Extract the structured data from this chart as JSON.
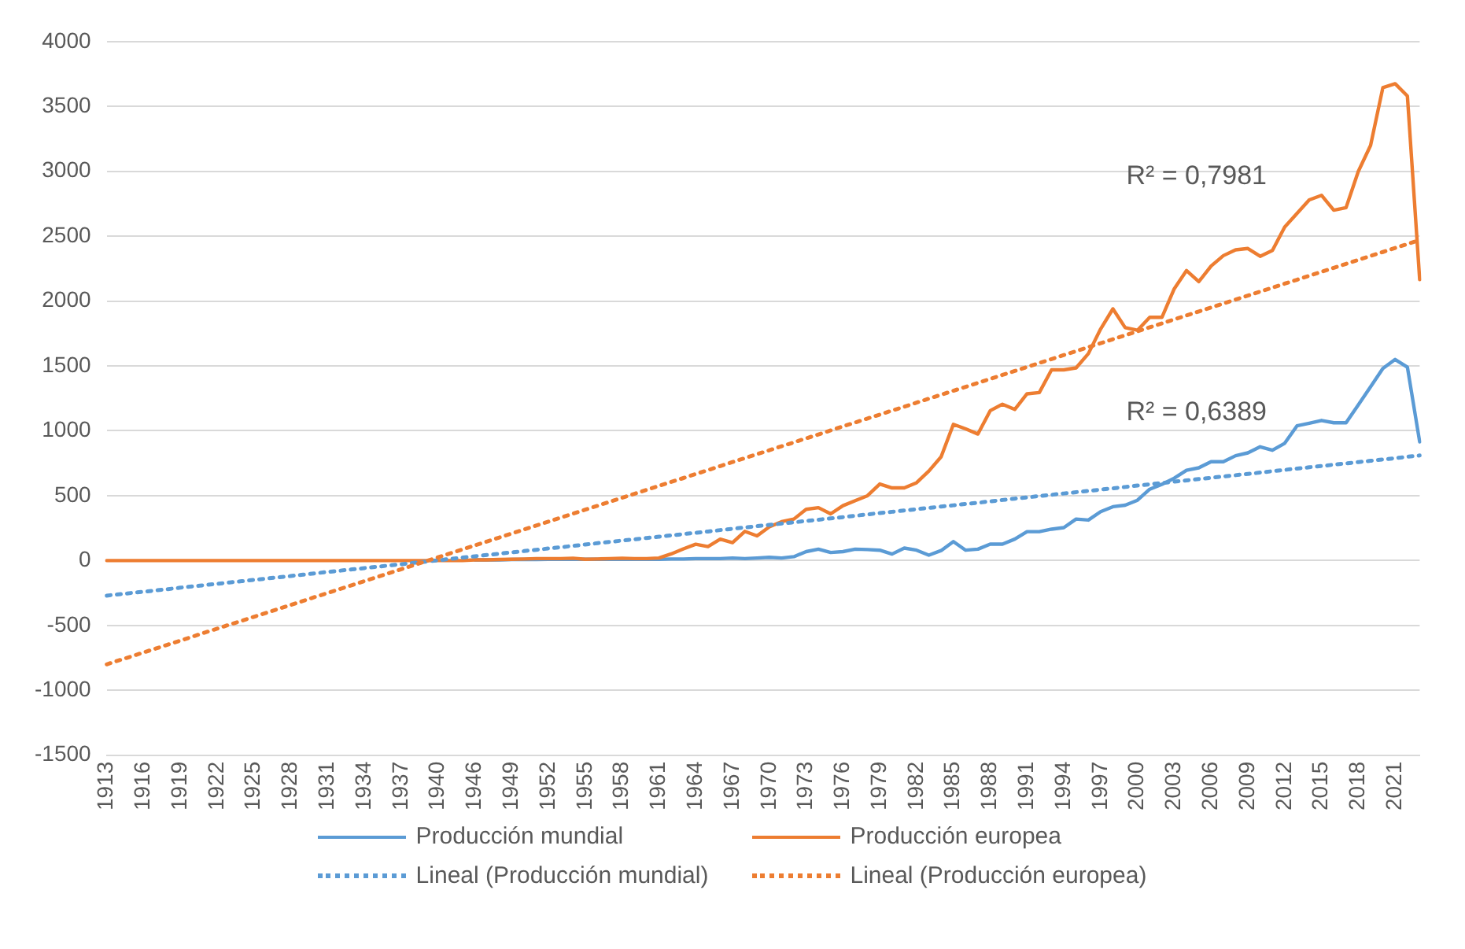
{
  "chart_data": {
    "type": "line",
    "categories": [
      "1913",
      null,
      null,
      "1916",
      null,
      null,
      "1919",
      null,
      null,
      "1922",
      null,
      null,
      "1925",
      null,
      null,
      "1928",
      null,
      null,
      "1931",
      null,
      null,
      "1934",
      null,
      null,
      "1937",
      null,
      null,
      "1940",
      null,
      null,
      "1946",
      null,
      null,
      "1949",
      null,
      null,
      "1952",
      null,
      null,
      "1955",
      null,
      null,
      "1958",
      null,
      null,
      "1961",
      null,
      null,
      "1964",
      null,
      null,
      "1967",
      null,
      null,
      "1970",
      null,
      null,
      "1973",
      null,
      null,
      "1976",
      null,
      null,
      "1979",
      null,
      null,
      "1982",
      null,
      null,
      "1985",
      null,
      null,
      "1988",
      null,
      null,
      "1991",
      null,
      null,
      "1994",
      null,
      null,
      "1997",
      null,
      null,
      "2000",
      null,
      null,
      "2003",
      null,
      null,
      "2006",
      null,
      null,
      "2009",
      null,
      null,
      "2012",
      null,
      null,
      "2015",
      null,
      null,
      "2018",
      null,
      null,
      "2021",
      null,
      null
    ],
    "series": [
      {
        "name": "Producción mundial",
        "color": "#5b9bd5",
        "line_style": "solid",
        "values": [
          null,
          null,
          null,
          null,
          null,
          null,
          null,
          null,
          null,
          null,
          null,
          null,
          null,
          null,
          null,
          null,
          null,
          null,
          null,
          null,
          null,
          null,
          null,
          null,
          null,
          null,
          null,
          null,
          null,
          null,
          5,
          5,
          5,
          8,
          8,
          8,
          10,
          10,
          10,
          10,
          10,
          10,
          10,
          10,
          10,
          10,
          12,
          12,
          15,
          15,
          15,
          20,
          15,
          20,
          25,
          20,
          30,
          69,
          88,
          62,
          69,
          88,
          85,
          80,
          50,
          96,
          80,
          42,
          77,
          146,
          80,
          88,
          127,
          127,
          165,
          223,
          223,
          242,
          254,
          320,
          312,
          377,
          415,
          427,
          465,
          550,
          588,
          635,
          696,
          715,
          762,
          762,
          808,
          830,
          877,
          850,
          904,
          1038,
          1058,
          1080,
          1062,
          1062,
          1200,
          1340,
          1480,
          1550,
          1490,
          915
        ]
      },
      {
        "name": "Producción europea",
        "color": "#ed7d31",
        "line_style": "solid",
        "values": [
          0,
          0,
          0,
          0,
          0,
          0,
          0,
          0,
          0,
          0,
          0,
          0,
          0,
          0,
          0,
          0,
          0,
          0,
          0,
          0,
          0,
          0,
          0,
          0,
          0,
          0,
          0,
          0,
          0,
          0,
          5,
          5,
          8,
          10,
          12,
          15,
          15,
          15,
          18,
          10,
          12,
          15,
          18,
          15,
          15,
          20,
          51,
          90,
          126,
          108,
          165,
          138,
          225,
          190,
          260,
          300,
          320,
          395,
          408,
          360,
          423,
          462,
          500,
          590,
          560,
          560,
          600,
          690,
          800,
          1050,
          1015,
          975,
          1155,
          1205,
          1165,
          1285,
          1295,
          1470,
          1470,
          1485,
          1595,
          1785,
          1940,
          1795,
          1775,
          1875,
          1875,
          2095,
          2235,
          2150,
          2270,
          2350,
          2395,
          2405,
          2345,
          2390,
          2570,
          2675,
          2780,
          2815,
          2700,
          2720,
          3000,
          3200,
          3645,
          3675,
          3580,
          2165
        ]
      },
      {
        "name": "Lineal (Producción mundial)",
        "color": "#5b9bd5",
        "line_style": "dotted",
        "values": [
          -270,
          -260,
          -250,
          -240,
          -230,
          -220,
          -209,
          -199,
          -189,
          -179,
          -169,
          -159,
          -149,
          -139,
          -129,
          -119,
          -109,
          -98,
          -88,
          -78,
          -68,
          -58,
          -48,
          -38,
          -28,
          -18,
          -8,
          2,
          13,
          23,
          33,
          43,
          53,
          63,
          73,
          83,
          93,
          103,
          113,
          124,
          134,
          144,
          154,
          164,
          174,
          184,
          194,
          204,
          214,
          224,
          235,
          245,
          255,
          265,
          275,
          285,
          295,
          305,
          315,
          325,
          335,
          345,
          356,
          366,
          376,
          386,
          396,
          406,
          416,
          426,
          436,
          446,
          456,
          467,
          477,
          487,
          497,
          507,
          517,
          527,
          537,
          547,
          557,
          567,
          578,
          588,
          598,
          608,
          618,
          628,
          638,
          648,
          658,
          668,
          678,
          689,
          699,
          709,
          719,
          729,
          739,
          749,
          759,
          769,
          779,
          789,
          800,
          810
        ]
      },
      {
        "name": "Lineal (Producción europea)",
        "color": "#ed7d31",
        "line_style": "dotted",
        "values": [
          -800,
          -769,
          -739,
          -708,
          -678,
          -647,
          -617,
          -586,
          -555,
          -525,
          -494,
          -464,
          -433,
          -403,
          -372,
          -342,
          -311,
          -280,
          -250,
          -219,
          -189,
          -158,
          -128,
          -97,
          -67,
          -36,
          -5,
          25,
          56,
          86,
          117,
          147,
          178,
          208,
          239,
          270,
          300,
          331,
          361,
          392,
          422,
          453,
          484,
          514,
          545,
          575,
          606,
          636,
          667,
          697,
          728,
          759,
          789,
          820,
          850,
          881,
          911,
          942,
          972,
          1003,
          1034,
          1064,
          1095,
          1125,
          1156,
          1186,
          1217,
          1248,
          1278,
          1309,
          1339,
          1370,
          1400,
          1431,
          1461,
          1492,
          1523,
          1553,
          1584,
          1614,
          1645,
          1675,
          1706,
          1736,
          1767,
          1798,
          1828,
          1859,
          1889,
          1920,
          1950,
          1981,
          2012,
          2042,
          2073,
          2103,
          2134,
          2164,
          2195,
          2225,
          2256,
          2287,
          2317,
          2348,
          2378,
          2409,
          2439,
          2470
        ]
      }
    ],
    "annotations": [
      "R² = 0,7981",
      "R² = 0,6389"
    ],
    "ylim": [
      -1500,
      4000
    ],
    "yticks": [
      -1500,
      -1000,
      -500,
      0,
      500,
      1000,
      1500,
      2000,
      2500,
      3000,
      3500,
      4000
    ],
    "grid": "y",
    "legend": "bottom",
    "marker": "none"
  }
}
